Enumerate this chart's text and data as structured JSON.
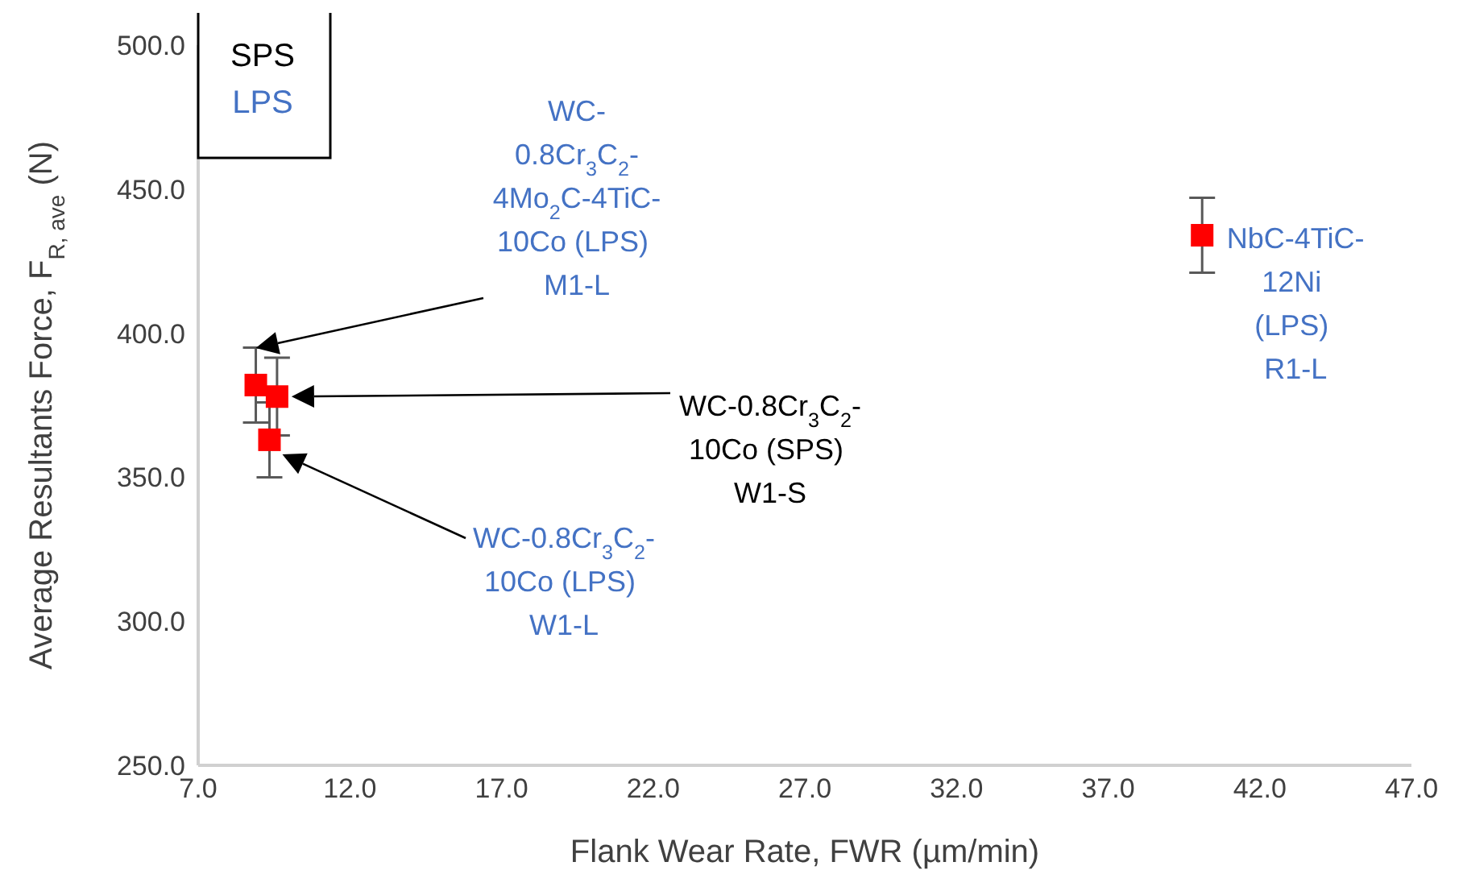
{
  "chart_data": {
    "type": "scatter",
    "xlabel": "Flank Wear Rate, FWR (µm/min)",
    "ylabel": "Average Resultants Force, F$_{R, ave}$ (N)",
    "x": [
      8.9,
      9.6,
      9.35,
      40.1
    ],
    "values": [
      382,
      378,
      363,
      434
    ],
    "errors": [
      13,
      13.5,
      13,
      13
    ],
    "color": "#ff0000",
    "marker": "square",
    "grid": false,
    "xlim": [
      7,
      47
    ],
    "xticks": [
      {
        "value": 7,
        "label": "7.0"
      },
      {
        "value": 12,
        "label": "12.0"
      },
      {
        "value": 17,
        "label": "17.0"
      },
      {
        "value": 22,
        "label": "22.0"
      },
      {
        "value": 27,
        "label": "27.0"
      },
      {
        "value": 32,
        "label": "32.0"
      },
      {
        "value": 37,
        "label": "37.0"
      },
      {
        "value": 42,
        "label": "42.0"
      },
      {
        "value": 47,
        "label": "47.0"
      }
    ],
    "ylim": [
      250,
      500
    ],
    "yticks": [
      {
        "value": 250,
        "label": "250.0"
      },
      {
        "value": 300,
        "label": "300.0"
      },
      {
        "value": 350,
        "label": "350.0"
      },
      {
        "value": 400,
        "label": "400.0"
      },
      {
        "value": 450,
        "label": "450.0"
      },
      {
        "value": 500,
        "label": "500.0"
      }
    ],
    "annotations": [
      "SPS",
      "LPS",
      "WC-0.8Cr$_{3}$C$_{2}$-4Mo$_{2}$C-4TiC-10Co (LPS) M1-L",
      "WC-0.8Cr$_{3}$C$_{2}$-10Co (SPS) W1-S",
      "WC-0.8Cr$_{3}$C$_{2}$-10Co (LPS) W1-L",
      {
        "text": "NbC-4TiC-12Ni (LPS) R1-L",
        "x": 40.1,
        "y": 434
      }
    ]
  }
}
